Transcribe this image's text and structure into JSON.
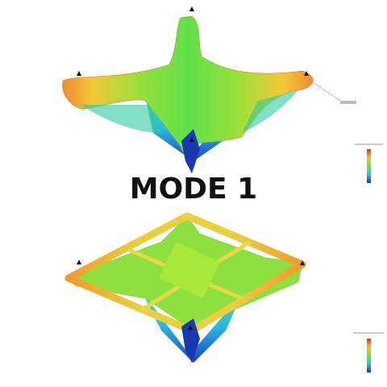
{
  "caption": {
    "title": "MODE 1"
  }
}
